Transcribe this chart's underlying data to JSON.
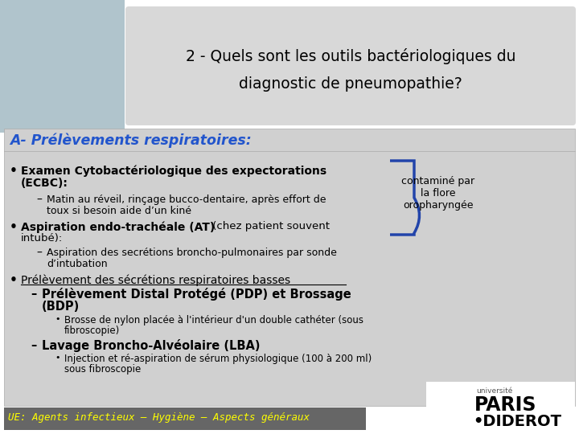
{
  "title_line1": "2 - Quels sont les outils bactériologiques du",
  "title_line2": "diagnostic de pneumopathie?",
  "header": "A- Prélèvements respiratoires:",
  "bg_color": "#c8c8c8",
  "title_bg": "#d8d8d8",
  "content_bg": "#d0d0d0",
  "header_color": "#2255cc",
  "footer_text": "UE: Agents infectieux – Hygiène – Aspects généraux",
  "footer_bg": "#666666",
  "footer_text_color": "#ffff00",
  "annotation": "contaminé par\nla flore\noropharyngée",
  "logo_box_color": "#ffffff",
  "white_outer_bg": "#ffffff"
}
